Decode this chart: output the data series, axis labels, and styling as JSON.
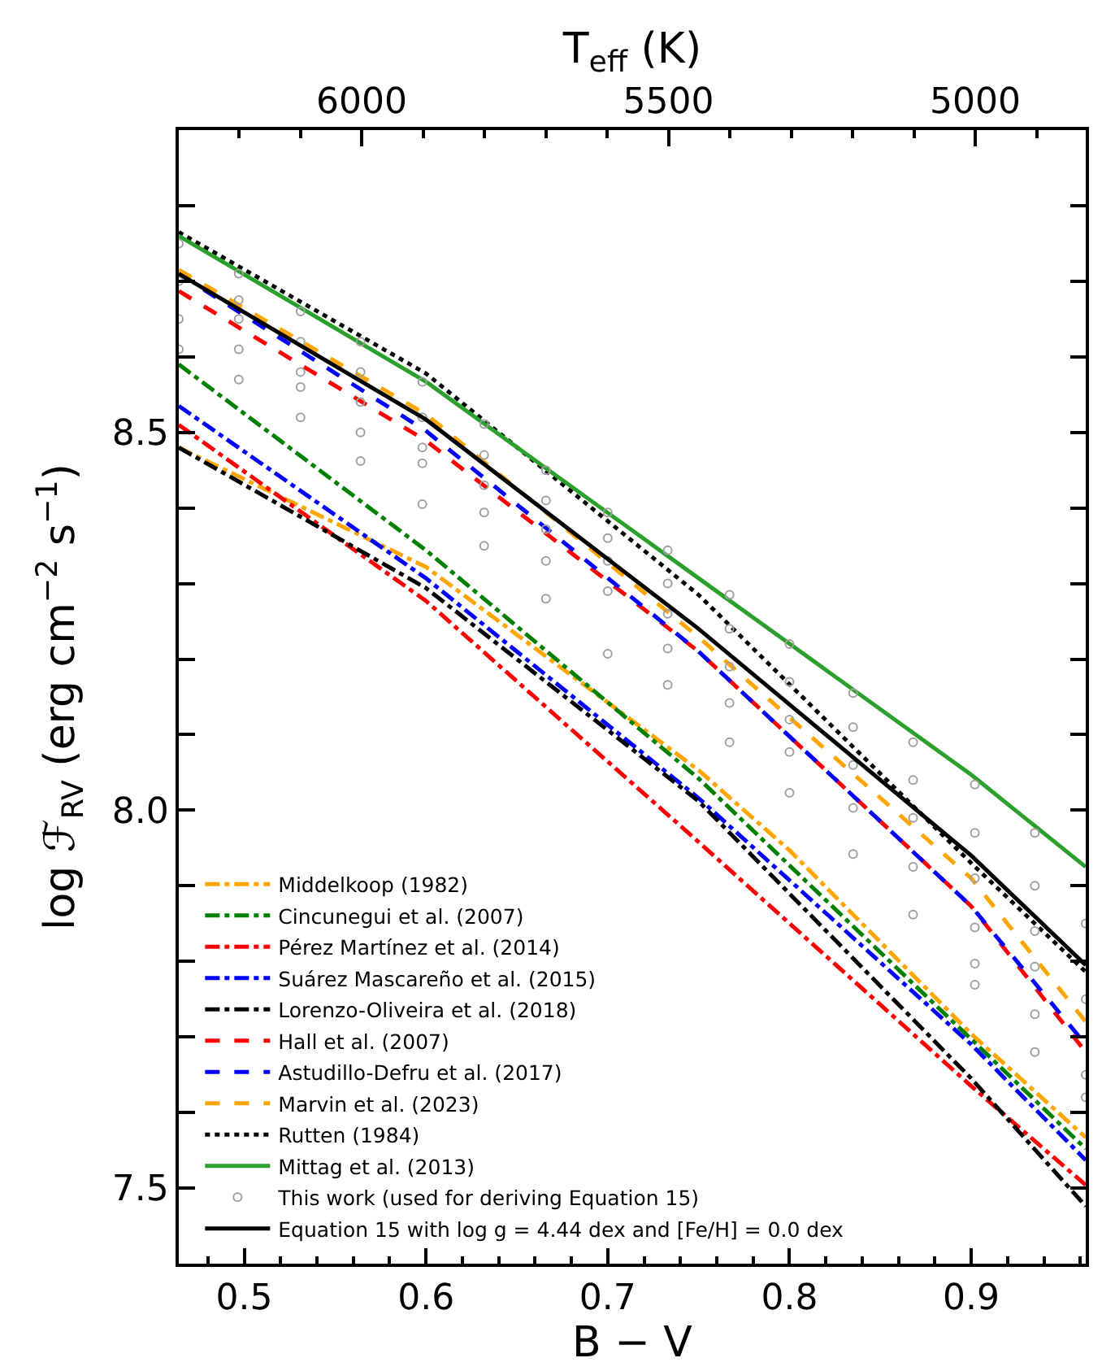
{
  "chart_data": {
    "type": "line",
    "xlabel": "B − V",
    "ylabel": "log ℱ$_{RV}$ (erg cm$^{−2}$ s$^{−1}$)",
    "x2label": "T$_{eff}$ (K)",
    "xlim": [
      0.464,
      0.963
    ],
    "ylim": [
      7.4,
      8.9
    ],
    "x2lim": [
      6298,
      4820
    ],
    "xticks": [
      {
        "value": 0.48,
        "label": null
      },
      0.5,
      {
        "value": 0.52,
        "label": null
      },
      {
        "value": 0.54,
        "label": null
      },
      {
        "value": 0.56,
        "label": null
      },
      {
        "value": 0.58,
        "label": null
      },
      0.6,
      {
        "value": 0.62,
        "label": null
      },
      {
        "value": 0.64,
        "label": null
      },
      {
        "value": 0.66,
        "label": null
      },
      {
        "value": 0.68,
        "label": null
      },
      0.7,
      {
        "value": 0.72,
        "label": null
      },
      {
        "value": 0.74,
        "label": null
      },
      {
        "value": 0.76,
        "label": null
      },
      {
        "value": 0.78,
        "label": null
      },
      0.8,
      {
        "value": 0.82,
        "label": null
      },
      {
        "value": 0.84,
        "label": null
      },
      {
        "value": 0.86,
        "label": null
      },
      {
        "value": 0.88,
        "label": null
      },
      0.9,
      {
        "value": 0.92,
        "label": null
      },
      {
        "value": 0.94,
        "label": null
      },
      {
        "value": 0.96,
        "label": null
      }
    ],
    "yticks": [
      {
        "value": 7.4,
        "label": null
      },
      7.5,
      {
        "value": 7.6,
        "label": null
      },
      {
        "value": 7.7,
        "label": null
      },
      {
        "value": 7.8,
        "label": null
      },
      {
        "value": 7.9,
        "label": null
      },
      {
        "value": 8.0,
        "label": "8.0"
      },
      {
        "value": 8.1,
        "label": null
      },
      {
        "value": 8.2,
        "label": null
      },
      {
        "value": 8.3,
        "label": null
      },
      {
        "value": 8.4,
        "label": null
      },
      8.5,
      {
        "value": 8.6,
        "label": null
      },
      {
        "value": 8.7,
        "label": null
      },
      {
        "value": 8.8,
        "label": null
      }
    ],
    "x2ticks": [
      {
        "value": 6200,
        "label": null
      },
      {
        "value": 6100,
        "label": null
      },
      6000,
      {
        "value": 5900,
        "label": null
      },
      {
        "value": 5800,
        "label": null
      },
      {
        "value": 5700,
        "label": null
      },
      {
        "value": 5600,
        "label": null
      },
      5500,
      {
        "value": 5400,
        "label": null
      },
      {
        "value": 5300,
        "label": null
      },
      {
        "value": 5200,
        "label": null
      },
      {
        "value": 5100,
        "label": null
      },
      5000,
      {
        "value": 4900,
        "label": null
      }
    ],
    "legend": "bottom left",
    "series": [
      {
        "name": "Middelkoop (1982)",
        "color": "#ffa500",
        "line_style": "dashdot",
        "x": [
          0.464,
          0.6,
          0.75,
          0.8,
          0.9,
          0.963
        ],
        "values": [
          8.48,
          8.322,
          8.053,
          7.947,
          7.704,
          7.567
        ]
      },
      {
        "name": "Cincunegui et al. (2007)",
        "color": "#008000",
        "line_style": "dashdot",
        "x": [
          0.464,
          0.6,
          0.75,
          0.9,
          0.963
        ],
        "values": [
          8.59,
          8.344,
          8.042,
          7.697,
          7.552
        ]
      },
      {
        "name": "Pérez Martínez et al. (2014)",
        "color": "#ff0000",
        "line_style": "dashdot",
        "x": [
          0.464,
          0.6,
          0.75,
          0.9,
          0.963
        ],
        "values": [
          8.51,
          8.277,
          7.958,
          7.635,
          7.504
        ]
      },
      {
        "name": "Suárez Mascareño et al. (2015)",
        "color": "#0000ff",
        "line_style": "dashdot",
        "x": [
          0.464,
          0.6,
          0.75,
          0.9,
          0.963
        ],
        "values": [
          8.535,
          8.307,
          8.016,
          7.69,
          7.537
        ]
      },
      {
        "name": "Lorenzo-Oliveira et al. (2018)",
        "color": "#000000",
        "line_style": "dashdot",
        "x": [
          0.464,
          0.6,
          0.75,
          0.9,
          0.963
        ],
        "values": [
          8.48,
          8.294,
          8.012,
          7.645,
          7.476
        ]
      },
      {
        "name": "Hall et al. (2007)",
        "color": "#ff0000",
        "line_style": "dashed",
        "x": [
          0.464,
          0.6,
          0.75,
          0.9,
          0.963
        ],
        "values": [
          8.687,
          8.489,
          8.21,
          7.873,
          7.68
        ]
      },
      {
        "name": "Astudillo-Defru et al. (2017)",
        "color": "#0000ff",
        "line_style": "dashed",
        "x": [
          0.464,
          0.6,
          0.75,
          0.9,
          0.963
        ],
        "values": [
          8.71,
          8.502,
          8.21,
          7.873,
          7.69
        ]
      },
      {
        "name": "Marvin et al. (2023)",
        "color": "#ffa500",
        "line_style": "dashed",
        "x": [
          0.464,
          0.6,
          0.75,
          0.9,
          0.963
        ],
        "values": [
          8.715,
          8.524,
          8.229,
          7.91,
          7.72
        ]
      },
      {
        "name": "Rutten (1984)",
        "color": "#000000",
        "line_style": "dotted",
        "x": [
          0.464,
          0.6,
          0.75,
          0.9,
          0.963
        ],
        "values": [
          8.765,
          8.578,
          8.285,
          7.93,
          7.786
        ]
      },
      {
        "name": "Mittag et al. (2013)",
        "color": "#2ca02c",
        "line_style": "solid",
        "x": [
          0.464,
          0.6,
          0.75,
          0.9,
          0.963
        ],
        "values": [
          8.76,
          8.567,
          8.307,
          8.047,
          7.925
        ]
      },
      {
        "name": "This work (used for deriving Equation 15)",
        "color": "#a0a0a0",
        "type": "scatter",
        "marker": "circle",
        "x": [
          0.464,
          0.464,
          0.464,
          0.464,
          0.497,
          0.497,
          0.497,
          0.497,
          0.497,
          0.531,
          0.531,
          0.531,
          0.531,
          0.531,
          0.564,
          0.564,
          0.564,
          0.564,
          0.564,
          0.598,
          0.598,
          0.598,
          0.598,
          0.598,
          0.632,
          0.632,
          0.632,
          0.632,
          0.632,
          0.666,
          0.666,
          0.666,
          0.666,
          0.666,
          0.7,
          0.7,
          0.7,
          0.7,
          0.7,
          0.733,
          0.733,
          0.733,
          0.733,
          0.733,
          0.767,
          0.767,
          0.767,
          0.767,
          0.767,
          0.8,
          0.8,
          0.8,
          0.8,
          0.8,
          0.835,
          0.835,
          0.835,
          0.835,
          0.835,
          0.868,
          0.868,
          0.868,
          0.868,
          0.868,
          0.902,
          0.902,
          0.902,
          0.902,
          0.902,
          0.902,
          0.935,
          0.935,
          0.935,
          0.935,
          0.935,
          0.935,
          0.963,
          0.963,
          0.963,
          0.963
        ],
        "values": [
          8.75,
          8.7,
          8.65,
          8.61,
          8.71,
          8.675,
          8.65,
          8.61,
          8.57,
          8.66,
          8.62,
          8.58,
          8.56,
          8.52,
          8.62,
          8.58,
          8.54,
          8.5,
          8.462,
          8.567,
          8.52,
          8.48,
          8.459,
          8.405,
          8.511,
          8.47,
          8.43,
          8.394,
          8.35,
          8.45,
          8.41,
          8.372,
          8.33,
          8.28,
          8.394,
          8.36,
          8.33,
          8.29,
          8.207,
          8.344,
          8.3,
          8.26,
          8.214,
          8.166,
          8.285,
          8.24,
          8.19,
          8.142,
          8.09,
          8.22,
          8.17,
          8.12,
          8.077,
          8.023,
          8.155,
          8.11,
          8.06,
          8.003,
          7.942,
          8.09,
          8.04,
          7.99,
          7.925,
          7.862,
          8.034,
          7.97,
          7.91,
          7.845,
          7.797,
          7.769,
          7.97,
          7.9,
          7.84,
          7.793,
          7.73,
          7.68,
          7.85,
          7.75,
          7.65,
          7.62
        ]
      },
      {
        "name": "Equation 15 with log g = 4.44 dex and [Fe/H] = 0.0 dex",
        "color": "#000000",
        "line_style": "solid",
        "x": [
          0.464,
          0.6,
          0.75,
          0.9,
          0.963
        ],
        "values": [
          8.71,
          8.517,
          8.24,
          7.94,
          7.795
        ]
      }
    ]
  }
}
